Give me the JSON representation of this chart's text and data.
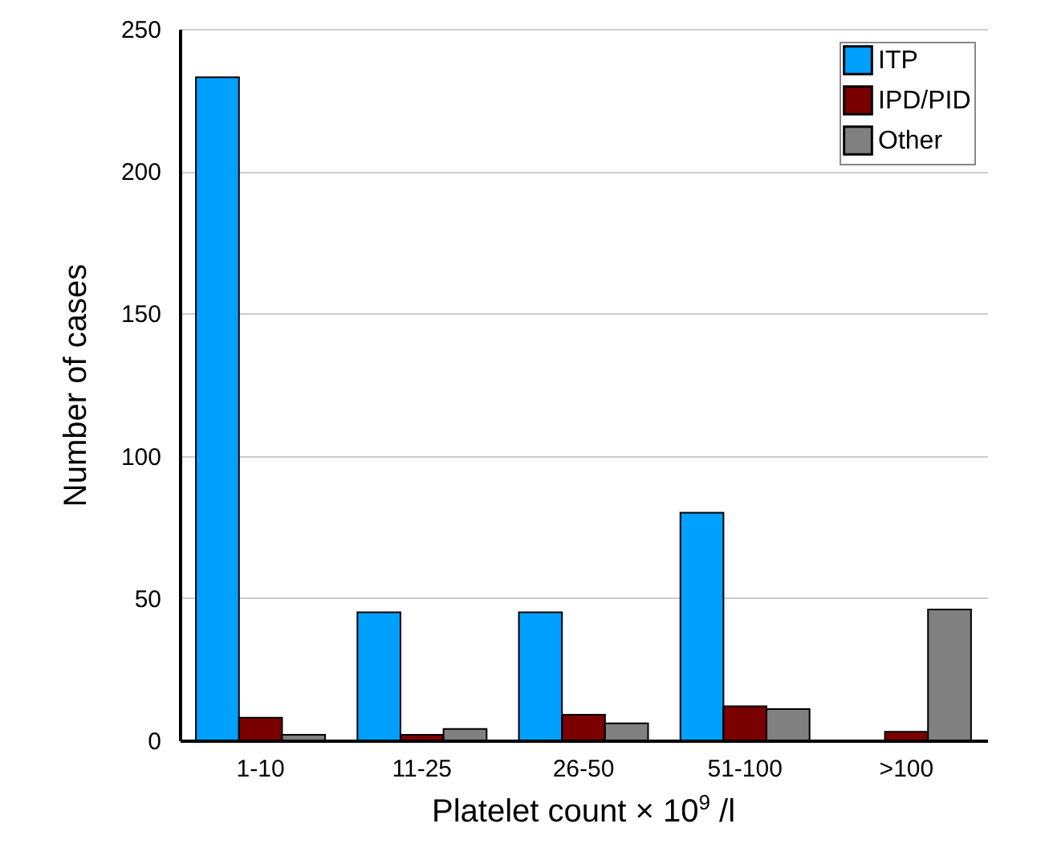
{
  "chart_data": {
    "type": "bar",
    "xlabel": "Platelet count × 10$^{9}$ /l",
    "ylabel": "Number of cases",
    "categories": [
      "1-10",
      "11-25",
      "26-50",
      "51-100",
      ">100"
    ],
    "series": [
      {
        "name": "ITP",
        "color": "#00a0ff",
        "values": [
          233,
          45,
          45,
          80,
          null
        ]
      },
      {
        "name": "IPD/PID",
        "color": "#7a0000",
        "values": [
          8,
          2,
          9,
          12,
          3
        ]
      },
      {
        "name": "Other",
        "color": "#808080",
        "values": [
          2,
          4,
          6,
          11,
          46
        ]
      }
    ],
    "ylim": [
      0,
      250
    ],
    "yticks": [
      0,
      50,
      100,
      150,
      200,
      250
    ],
    "grid": "y",
    "legend": "top right"
  }
}
